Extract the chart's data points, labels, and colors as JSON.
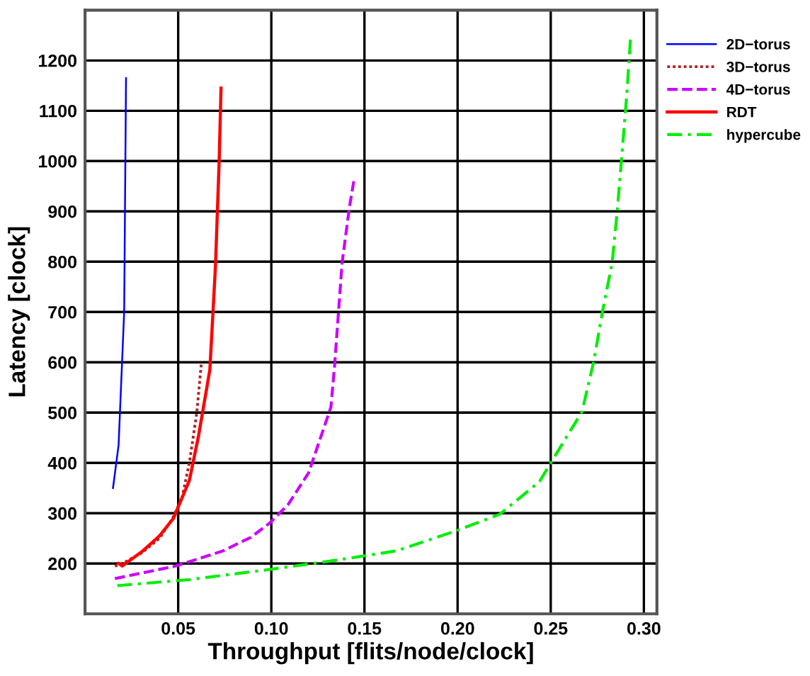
{
  "chart_data": {
    "type": "line",
    "xlabel": "Throughput [flits/node/clock]",
    "ylabel": "Latency [clock]",
    "xlim": [
      0.0,
      0.307
    ],
    "ylim": [
      100,
      1300
    ],
    "xticks": [
      {
        "value": 0.05,
        "label": "0.05"
      },
      {
        "value": 0.1,
        "label": "0.10"
      },
      {
        "value": 0.15,
        "label": "0.15"
      },
      {
        "value": 0.2,
        "label": "0.20"
      },
      {
        "value": 0.25,
        "label": "0.25"
      },
      {
        "value": 0.3,
        "label": "0.30"
      }
    ],
    "yticks": [
      200,
      300,
      400,
      500,
      600,
      700,
      800,
      900,
      1000,
      1100,
      1200
    ],
    "grid": true,
    "legend": "top right",
    "marker": "none",
    "series": [
      {
        "name": "2D−torus",
        "color": "#0000ff",
        "line_style": "solid",
        "x": [
          0.015,
          0.018,
          0.021,
          0.022
        ],
        "values": [
          350,
          435,
          700,
          1165
        ]
      },
      {
        "name": "3D−torus",
        "color": "#b22222",
        "line_style": "dotted",
        "x": [
          0.016,
          0.02,
          0.03,
          0.04,
          0.047,
          0.052,
          0.056,
          0.06,
          0.0625
        ],
        "values": [
          195,
          200,
          220,
          250,
          290,
          330,
          400,
          500,
          600
        ]
      },
      {
        "name": "4D−torus",
        "color": "#cc00ff",
        "line_style": "dashed",
        "x": [
          0.016,
          0.0487,
          0.074,
          0.089,
          0.099,
          0.109,
          0.12,
          0.132,
          0.134,
          0.138,
          0.142,
          0.1445
        ],
        "values": [
          170,
          195,
          225,
          252,
          280,
          317,
          380,
          511,
          595,
          798,
          910,
          965
        ]
      },
      {
        "name": "RDT",
        "color": "#ff0000",
        "line_style": "solid",
        "x": [
          0.018,
          0.02,
          0.031,
          0.04,
          0.0475,
          0.056,
          0.061,
          0.067,
          0.07,
          0.072,
          0.073
        ],
        "values": [
          200,
          195,
          225,
          255,
          290,
          365,
          455,
          585,
          790,
          1000,
          1145
        ]
      },
      {
        "name": "hypercube",
        "color": "#00ee00",
        "line_style": "dashdot",
        "x": [
          0.0173,
          0.056,
          0.0966,
          0.132,
          0.167,
          0.2,
          0.2227,
          0.244,
          0.25,
          0.2668,
          0.273,
          0.278,
          0.283,
          0.2857,
          0.288,
          0.2908,
          0.2928
        ],
        "values": [
          156,
          168,
          187,
          205,
          225,
          266,
          298,
          363,
          400,
          502,
          600,
          705,
          798,
          900,
          1003,
          1131,
          1242
        ]
      }
    ]
  }
}
